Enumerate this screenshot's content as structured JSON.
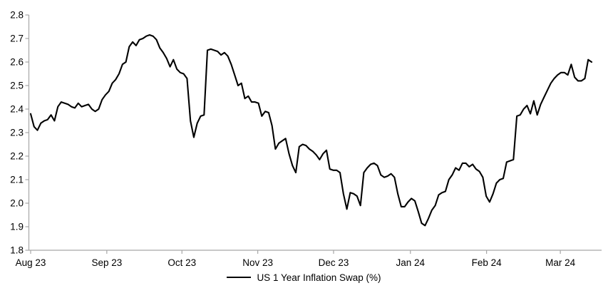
{
  "chart_data": {
    "type": "line",
    "title": "",
    "xlabel": "",
    "ylabel": "",
    "background": "#ffffff",
    "axis_color": "#a6a6a6",
    "text_color": "#000000",
    "grid": false,
    "legend_position": "bottom-center",
    "ylim": [
      1.8,
      2.8
    ],
    "y_tick_step": 0.1,
    "y_tick_labels": [
      "2.8",
      "2.7",
      "2.6",
      "2.5",
      "2.4",
      "2.3",
      "2.2",
      "2.1",
      "2.0",
      "1.9",
      "1.8"
    ],
    "x_tick_labels": [
      "Aug 23",
      "Sep 23",
      "Oct 23",
      "Nov 23",
      "Dec 23",
      "Jan 24",
      "Feb 24",
      "Mar 24"
    ],
    "x_tick_indices": [
      0,
      22.4,
      44.5,
      66.8,
      89.1,
      111.7,
      134.1,
      155.8
    ],
    "series": [
      {
        "name": "US 1 Year Inflation Swap (%)",
        "color": "#000000",
        "values": [
          2.38,
          2.325,
          2.31,
          2.34,
          2.35,
          2.355,
          2.375,
          2.35,
          2.41,
          2.43,
          2.425,
          2.42,
          2.41,
          2.405,
          2.425,
          2.41,
          2.415,
          2.42,
          2.4,
          2.39,
          2.4,
          2.44,
          2.46,
          2.475,
          2.51,
          2.525,
          2.55,
          2.59,
          2.6,
          2.665,
          2.685,
          2.67,
          2.695,
          2.7,
          2.71,
          2.715,
          2.71,
          2.695,
          2.66,
          2.64,
          2.615,
          2.58,
          2.61,
          2.57,
          2.555,
          2.55,
          2.53,
          2.35,
          2.28,
          2.34,
          2.37,
          2.375,
          2.65,
          2.655,
          2.65,
          2.645,
          2.63,
          2.64,
          2.625,
          2.59,
          2.545,
          2.5,
          2.51,
          2.445,
          2.455,
          2.43,
          2.43,
          2.425,
          2.37,
          2.39,
          2.385,
          2.33,
          2.23,
          2.255,
          2.265,
          2.275,
          2.21,
          2.16,
          2.13,
          2.24,
          2.25,
          2.245,
          2.23,
          2.22,
          2.205,
          2.185,
          2.21,
          2.225,
          2.145,
          2.14,
          2.14,
          2.13,
          2.04,
          1.975,
          2.045,
          2.04,
          2.03,
          1.99,
          2.13,
          2.15,
          2.165,
          2.17,
          2.16,
          2.12,
          2.11,
          2.115,
          2.125,
          2.11,
          2.04,
          1.985,
          1.985,
          2.005,
          2.02,
          2.01,
          1.965,
          1.915,
          1.905,
          1.935,
          1.97,
          1.99,
          2.035,
          2.045,
          2.05,
          2.1,
          2.12,
          2.15,
          2.14,
          2.17,
          2.17,
          2.155,
          2.165,
          2.145,
          2.135,
          2.11,
          2.03,
          2.005,
          2.04,
          2.085,
          2.1,
          2.105,
          2.175,
          2.18,
          2.185,
          2.37,
          2.375,
          2.4,
          2.415,
          2.38,
          2.435,
          2.375,
          2.42,
          2.45,
          2.48,
          2.51,
          2.53,
          2.545,
          2.555,
          2.555,
          2.545,
          2.59,
          2.535,
          2.52,
          2.52,
          2.53,
          2.61,
          2.6
        ]
      }
    ]
  }
}
